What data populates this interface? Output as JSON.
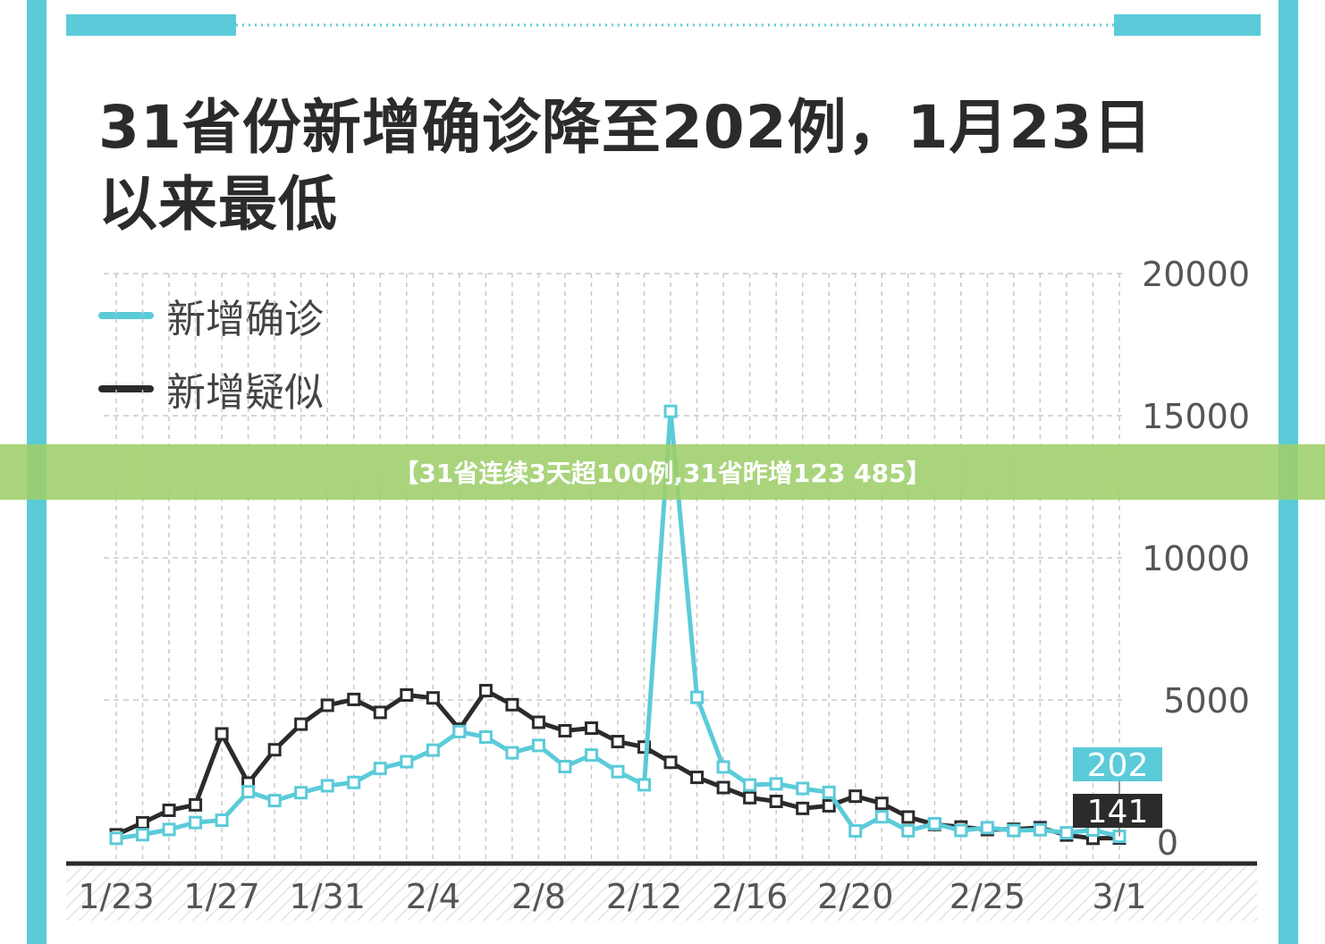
{
  "colors": {
    "frame": "#5bcbd9",
    "confirmed": "#5bcbd9",
    "suspected": "#2b2b2b",
    "banner": "#9fcf6a",
    "grid": "#c8c8c8",
    "axis_text": "#555555"
  },
  "title": "31省份新增确诊降至202例，1月23日以来最低",
  "banner": "【31省连续3天超100例,31省昨增123 485】",
  "chart_data": {
    "type": "line",
    "title": "31省份新增确诊降至202例，1月23日以来最低",
    "x": [
      "1/23",
      "1/24",
      "1/25",
      "1/26",
      "1/27",
      "1/28",
      "1/29",
      "1/30",
      "1/31",
      "2/1",
      "2/2",
      "2/3",
      "2/4",
      "2/5",
      "2/6",
      "2/7",
      "2/8",
      "2/9",
      "2/10",
      "2/11",
      "2/12",
      "2/13",
      "2/14",
      "2/15",
      "2/16",
      "2/17",
      "2/18",
      "2/19",
      "2/20",
      "2/21",
      "2/22",
      "2/23",
      "2/24",
      "2/25",
      "2/26",
      "2/27",
      "2/28",
      "2/29",
      "3/1"
    ],
    "tick_labels": [
      "1/23",
      "1/27",
      "1/31",
      "2/4",
      "2/8",
      "2/12",
      "2/16",
      "2/20",
      "2/25",
      "3/1"
    ],
    "ylim": [
      0,
      20000
    ],
    "yticks": [
      0,
      5000,
      10000,
      15000,
      20000
    ],
    "legend": "top-left",
    "grid": true,
    "series": [
      {
        "name": "新增确诊",
        "color": "#5bcbd9",
        "values": [
          131,
          259,
          444,
          688,
          769,
          1771,
          1459,
          1737,
          1981,
          2099,
          2590,
          2829,
          3235,
          3887,
          3694,
          3143,
          3399,
          2656,
          3062,
          2478,
          2015,
          15152,
          5090,
          2641,
          2009,
          2048,
          1886,
          1749,
          394,
          889,
          397,
          648,
          409,
          508,
          406,
          433,
          327,
          427,
          202
        ]
      },
      {
        "name": "新增疑似",
        "color": "#2b2b2b",
        "values": [
          257,
          680,
          1118,
          1309,
          3806,
          2077,
          3248,
          4148,
          4812,
          5019,
          4562,
          5173,
          5072,
          3971,
          5328,
          4833,
          4214,
          3916,
          4008,
          3536,
          3342,
          2807,
          2277,
          1918,
          1563,
          1432,
          1185,
          1277,
          1614,
          1361,
          882,
          620,
          530,
          439,
          452,
          508,
          248,
          132,
          141
        ]
      }
    ],
    "annotations": [
      {
        "text": "202",
        "series": "新增确诊",
        "x": "3/1"
      },
      {
        "text": "141",
        "series": "新增疑似",
        "x": "3/1"
      }
    ]
  }
}
